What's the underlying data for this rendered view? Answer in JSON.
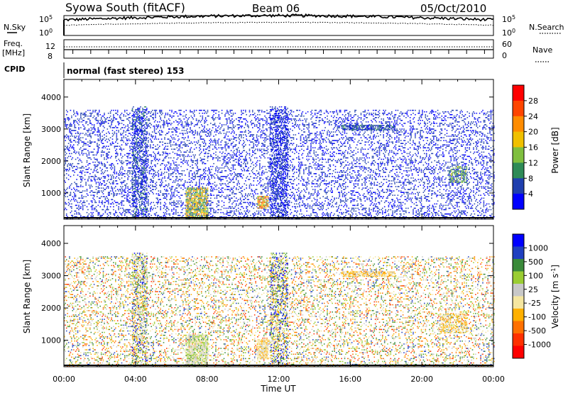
{
  "header": {
    "station": "Syowa South (fitACF)",
    "beam": "Beam 06",
    "date": "05/Oct/2010"
  },
  "top_panels": {
    "nsky_label": "N.Sky",
    "nsky_ticks_left": [
      "10^5",
      "10^0"
    ],
    "nsky_ticks_right": [
      "10^5",
      "10^0"
    ],
    "nsearch_label": "N.Search",
    "freq_label": "Freq.",
    "freq_unit": "[MHz]",
    "freq_ticks": [
      "12",
      "8"
    ],
    "nave_label": "Nave",
    "nave_ticks": [
      "60",
      "0"
    ],
    "cpid_label": "CPID",
    "cpid_value": "normal (fast stereo) 153"
  },
  "colors": {
    "power_scale": [
      "#0000ff",
      "#1f3fae",
      "#2e8b57",
      "#7fbf3f",
      "#f0c000",
      "#ff8c00",
      "#ff4500",
      "#ff0000"
    ],
    "velocity_scale": [
      "#0000ff",
      "#2040c0",
      "#3a8a3a",
      "#9acd32",
      "#c8c8c8",
      "#f5e6a0",
      "#ffb000",
      "#ff7000",
      "#ff3000",
      "#ff0000"
    ]
  },
  "chart_data": [
    {
      "type": "heatmap",
      "name": "power",
      "ylabel": "Slant Range [km]",
      "xlabel": "Time UT",
      "x_ticks": [
        "00:00",
        "04:00",
        "08:00",
        "12:00",
        "16:00",
        "20:00",
        "00:00"
      ],
      "y_ticks": [
        "1000",
        "2000",
        "3000",
        "4000"
      ],
      "xlim_hours": [
        0,
        24
      ],
      "ylim_km": [
        180,
        4550
      ],
      "colorbar_label": "Power [dB]",
      "colorbar_ticks": [
        "28",
        "24",
        "20",
        "16",
        "12",
        "8",
        "4"
      ],
      "colorbar_range": [
        0,
        30
      ],
      "clusters": [
        {
          "t_start": 0,
          "t_end": 24,
          "r_min": 180,
          "r_max": 3600,
          "density": 0.25,
          "value_mean": 4,
          "value_spread": 3
        },
        {
          "t_start": 3.8,
          "t_end": 4.6,
          "r_min": 200,
          "r_max": 3700,
          "density": 0.5,
          "value_mean": 5,
          "value_spread": 4
        },
        {
          "t_start": 6.8,
          "t_end": 8.0,
          "r_min": 180,
          "r_max": 1150,
          "density": 0.85,
          "value_mean": 14,
          "value_spread": 8
        },
        {
          "t_start": 10.8,
          "t_end": 11.4,
          "r_min": 500,
          "r_max": 900,
          "density": 0.9,
          "value_mean": 18,
          "value_spread": 7
        },
        {
          "t_start": 11.5,
          "t_end": 12.5,
          "r_min": 200,
          "r_max": 3700,
          "density": 0.5,
          "value_mean": 4,
          "value_spread": 3
        },
        {
          "t_start": 15.5,
          "t_end": 18.5,
          "r_min": 2950,
          "r_max": 3100,
          "density": 0.8,
          "value_mean": 6,
          "value_spread": 3
        },
        {
          "t_start": 21.5,
          "t_end": 22.5,
          "r_min": 1300,
          "r_max": 1800,
          "density": 0.6,
          "value_mean": 10,
          "value_spread": 6
        }
      ]
    },
    {
      "type": "heatmap",
      "name": "velocity",
      "ylabel": "Slant Range [km]",
      "xlabel": "Time UT",
      "x_ticks": [
        "00:00",
        "04:00",
        "08:00",
        "12:00",
        "16:00",
        "20:00",
        "00:00"
      ],
      "y_ticks": [
        "1000",
        "2000",
        "3000",
        "4000"
      ],
      "xlim_hours": [
        0,
        24
      ],
      "ylim_km": [
        180,
        4550
      ],
      "colorbar_label": "Velocity [m s^-1]",
      "colorbar_ticks": [
        "1000",
        "500",
        "100",
        "25",
        "-25",
        "-100",
        "-500",
        "-1000"
      ],
      "colorbar_range": [
        -1250,
        1250
      ],
      "clusters": [
        {
          "t_start": 0,
          "t_end": 24,
          "r_min": 180,
          "r_max": 3600,
          "density": 0.25,
          "value_mean": 0,
          "value_spread": 900
        },
        {
          "t_start": 3.8,
          "t_end": 4.6,
          "r_min": 200,
          "r_max": 3700,
          "density": 0.5,
          "value_mean": 300,
          "value_spread": 800
        },
        {
          "t_start": 6.8,
          "t_end": 8.0,
          "r_min": 180,
          "r_max": 1150,
          "density": 0.85,
          "value_mean": 150,
          "value_spread": 400
        },
        {
          "t_start": 10.8,
          "t_end": 11.4,
          "r_min": 400,
          "r_max": 1000,
          "density": 0.9,
          "value_mean": -150,
          "value_spread": 200
        },
        {
          "t_start": 11.5,
          "t_end": 12.5,
          "r_min": 200,
          "r_max": 3700,
          "density": 0.5,
          "value_mean": 400,
          "value_spread": 900
        },
        {
          "t_start": 15.5,
          "t_end": 18.5,
          "r_min": 2950,
          "r_max": 3100,
          "density": 0.8,
          "value_mean": -200,
          "value_spread": 300
        },
        {
          "t_start": 21.0,
          "t_end": 22.5,
          "r_min": 1200,
          "r_max": 1800,
          "density": 0.6,
          "value_mean": -200,
          "value_spread": 300
        }
      ]
    }
  ]
}
